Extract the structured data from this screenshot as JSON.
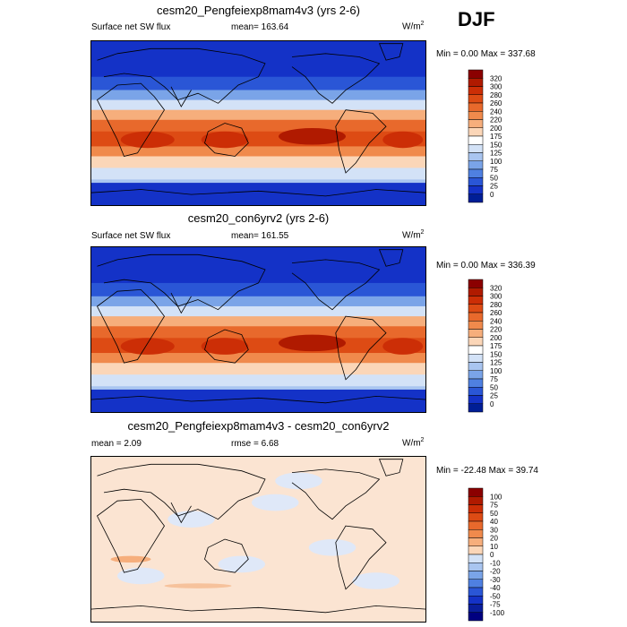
{
  "season": "DJF",
  "panels": [
    {
      "title": "cesm20_Pengfeiexp8mam4v3 (yrs 2-6)",
      "left_label": "Surface net SW flux",
      "center_label": "mean=  163.64",
      "units_base": "W/m",
      "units_exp": "2",
      "minmax": "Min =   0.00 Max = 337.68",
      "map_kind": "field"
    },
    {
      "title": "cesm20_con6yrv2 (yrs 2-6)",
      "left_label": "Surface net SW flux",
      "center_label": "mean=  161.55",
      "units_base": "W/m",
      "units_exp": "2",
      "minmax": "Min =   0.00 Max = 336.39",
      "map_kind": "field"
    },
    {
      "title": "cesm20_Pengfeiexp8mam4v3 - cesm20_con6yrv2",
      "left_label": "mean =   2.09",
      "center_label": "rmse =   6.68",
      "units_base": "W/m",
      "units_exp": "2",
      "minmax": "Min = -22.48 Max =  39.74",
      "map_kind": "diff"
    }
  ],
  "colorbars": {
    "field": {
      "labels": [
        "320",
        "300",
        "280",
        "260",
        "240",
        "220",
        "200",
        "175",
        "150",
        "125",
        "100",
        "75",
        "50",
        "25",
        "0"
      ],
      "colors": [
        "#8b0000",
        "#b01a00",
        "#cc2e06",
        "#dd4b14",
        "#e8692c",
        "#f08a4c",
        "#f6ae7c",
        "#fbd6b8",
        "#ffffff",
        "#d3e2f7",
        "#a9c5f0",
        "#7aa4e8",
        "#4f80e1",
        "#2a56d6",
        "#1432c7",
        "#001e96"
      ]
    },
    "diff": {
      "labels": [
        "100",
        "75",
        "50",
        "40",
        "30",
        "20",
        "10",
        "0",
        "-10",
        "-20",
        "-30",
        "-40",
        "-50",
        "-75",
        "-100"
      ],
      "colors": [
        "#8b0000",
        "#b01a00",
        "#cc2e06",
        "#dd4b14",
        "#e8692c",
        "#f08a4c",
        "#f6ae7c",
        "#fbd6b8",
        "#d3e2f7",
        "#a9c5f0",
        "#7aa4e8",
        "#4f80e1",
        "#2a56d6",
        "#1432c7",
        "#0a1e9c",
        "#000080"
      ]
    }
  }
}
